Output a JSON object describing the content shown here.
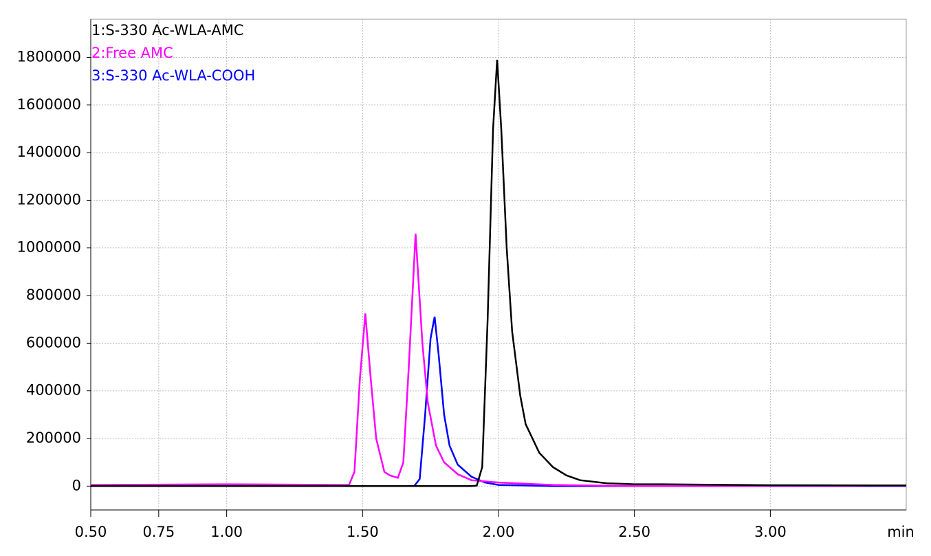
{
  "chart_data": {
    "type": "line",
    "x_label": "min",
    "xlim": [
      0.5,
      3.5
    ],
    "ylim": [
      -100000,
      1960000
    ],
    "xticks": [
      {
        "value": 0.5,
        "label": "0.50"
      },
      {
        "value": 0.75,
        "label": "0.75"
      },
      {
        "value": 1.0,
        "label": "1.00"
      },
      {
        "value": 1.5,
        "label": "1.50"
      },
      {
        "value": 2.0,
        "label": "2.00"
      },
      {
        "value": 2.5,
        "label": "2.50"
      },
      {
        "value": 3.0,
        "label": "3.00"
      }
    ],
    "yticks": [
      0,
      200000,
      400000,
      600000,
      800000,
      1000000,
      1200000,
      1400000,
      1600000,
      1800000
    ],
    "grid": true,
    "legend": "top-left",
    "series": [
      {
        "name": "1:S-330 Ac-WLA-AMC",
        "color": "#000000",
        "x": [
          0.5,
          1.9,
          1.92,
          1.94,
          1.96,
          1.98,
          1.995,
          2.01,
          2.03,
          2.05,
          2.08,
          2.1,
          2.15,
          2.2,
          2.25,
          2.3,
          2.4,
          2.5,
          2.6,
          3.0,
          3.5
        ],
        "values": [
          0,
          0,
          2000,
          80000,
          700000,
          1500000,
          1790000,
          1500000,
          1000000,
          650000,
          380000,
          260000,
          140000,
          80000,
          45000,
          25000,
          12000,
          8000,
          8000,
          4000,
          3000
        ]
      },
      {
        "name": "2:Free AMC",
        "color": "#ff00ff",
        "x": [
          0.5,
          1.0,
          1.45,
          1.47,
          1.49,
          1.51,
          1.53,
          1.55,
          1.58,
          1.6,
          1.63,
          1.65,
          1.67,
          1.695,
          1.72,
          1.74,
          1.77,
          1.8,
          1.85,
          1.9,
          2.0,
          2.2,
          2.5,
          3.5
        ],
        "values": [
          5000,
          8000,
          5000,
          60000,
          450000,
          725000,
          450000,
          200000,
          60000,
          45000,
          35000,
          100000,
          500000,
          1060000,
          600000,
          350000,
          170000,
          100000,
          50000,
          25000,
          15000,
          5000,
          0,
          2000
        ]
      },
      {
        "name": "3:S-330 Ac-WLA-COOH",
        "color": "#0000ff",
        "x": [
          0.5,
          1.69,
          1.71,
          1.73,
          1.75,
          1.765,
          1.78,
          1.8,
          1.82,
          1.85,
          1.9,
          1.95,
          2.0,
          2.2,
          3.5
        ],
        "values": [
          0,
          0,
          30000,
          300000,
          620000,
          711000,
          550000,
          300000,
          170000,
          90000,
          40000,
          15000,
          5000,
          0,
          0
        ]
      }
    ]
  }
}
